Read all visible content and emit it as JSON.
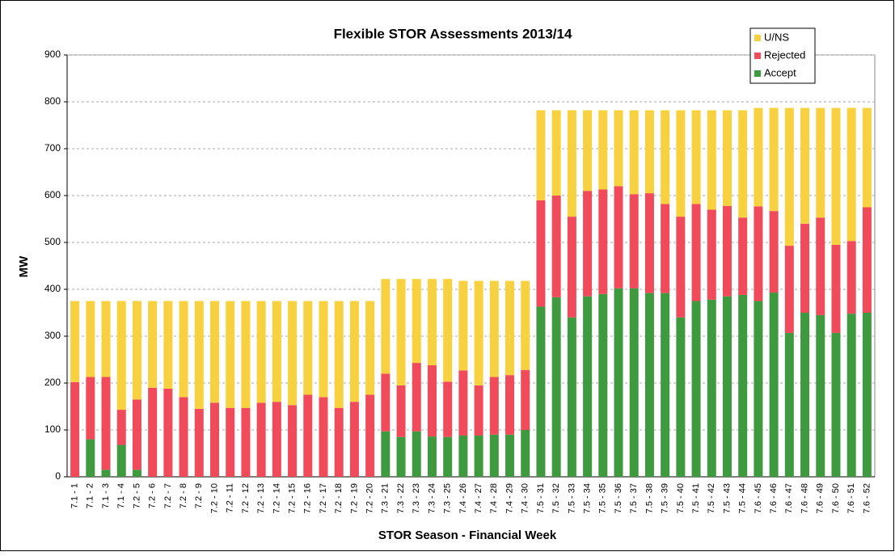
{
  "chart_data": {
    "type": "stacked_bar",
    "title": "Flexible STOR Assessments 2013/14",
    "xlabel": "STOR Season - Financial Week",
    "ylabel": "MW",
    "categories": [
      "7.1 - 1",
      "7.1 - 2",
      "7.1 - 3",
      "7.1 - 4",
      "7.2 - 5",
      "7.2 - 6",
      "7.2 - 7",
      "7.2 - 8",
      "7.2 - 9",
      "7.2 - 10",
      "7.2 - 11",
      "7.2 - 12",
      "7.2 - 13",
      "7.2 - 14",
      "7.2 - 15",
      "7.2 - 16",
      "7.2 - 17",
      "7.2 - 18",
      "7.2 - 19",
      "7.2 - 20",
      "7.3 - 21",
      "7.3 - 22",
      "7.3 - 23",
      "7.3 - 24",
      "7.3 - 25",
      "7.4 - 26",
      "7.4 - 27",
      "7.4 - 28",
      "7.4 - 29",
      "7.4 - 30",
      "7.5 - 31",
      "7.5 - 32",
      "7.5 - 33",
      "7.5 - 34",
      "7.5 - 35",
      "7.5 - 36",
      "7.5 - 37",
      "7.5 - 38",
      "7.5 - 39",
      "7.5 - 40",
      "7.5 - 41",
      "7.5 - 42",
      "7.5 - 43",
      "7.5 - 44",
      "7.6 - 45",
      "7.6 - 46",
      "7.6 - 47",
      "7.6 - 48",
      "7.6 - 49",
      "7.6 - 50",
      "7.6 - 51",
      "7.6 - 52"
    ],
    "series": [
      {
        "name": "Accept",
        "color": "#3f9a3f",
        "values": [
          0,
          80,
          15,
          68,
          15,
          0,
          0,
          0,
          0,
          0,
          0,
          0,
          0,
          0,
          0,
          0,
          0,
          0,
          0,
          0,
          97,
          85,
          97,
          86,
          85,
          88,
          88,
          90,
          90,
          100,
          363,
          383,
          340,
          385,
          390,
          402,
          402,
          392,
          392,
          340,
          375,
          378,
          385,
          388,
          375,
          393,
          307,
          350,
          345,
          307,
          348,
          350
        ]
      },
      {
        "name": "Rejected",
        "color": "#ef4b5a",
        "values": [
          202,
          133,
          198,
          75,
          150,
          190,
          188,
          170,
          145,
          158,
          147,
          147,
          158,
          160,
          153,
          175,
          170,
          147,
          160,
          175,
          123,
          110,
          146,
          152,
          118,
          139,
          107,
          123,
          127,
          128,
          227,
          217,
          215,
          225,
          223,
          218,
          201,
          213,
          190,
          215,
          207,
          192,
          193,
          165,
          202,
          174,
          186,
          190,
          208,
          188,
          155,
          225
        ]
      },
      {
        "name": "U/NS",
        "color": "#f7d13f",
        "values": [
          173,
          162,
          162,
          232,
          210,
          185,
          187,
          205,
          230,
          217,
          228,
          228,
          217,
          215,
          222,
          200,
          205,
          228,
          215,
          200,
          202,
          227,
          179,
          184,
          219,
          191,
          223,
          205,
          201,
          190,
          192,
          182,
          227,
          172,
          169,
          162,
          179,
          177,
          200,
          227,
          200,
          212,
          204,
          229,
          210,
          220,
          294,
          247,
          234,
          292,
          284,
          212
        ]
      }
    ],
    "ylim": [
      0,
      900
    ],
    "yticks": [
      0,
      100,
      200,
      300,
      400,
      500,
      600,
      700,
      800,
      900
    ],
    "grid": true,
    "legend": "upper right"
  }
}
